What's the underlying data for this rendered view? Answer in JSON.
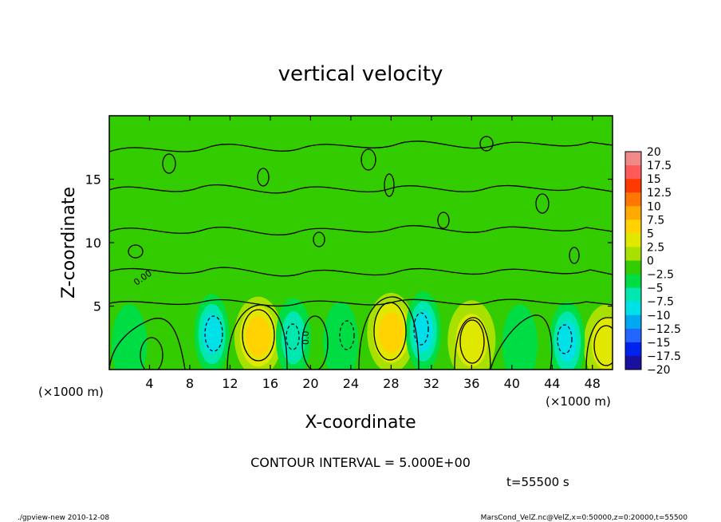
{
  "chart_data": {
    "type": "heatmap",
    "title": "vertical velocity",
    "xlabel": "X-coordinate",
    "ylabel": "Z-coordinate",
    "x_unit_label": "(×1000 m)",
    "y_unit_label": "(×1000 m)",
    "xlim": [
      0,
      50
    ],
    "ylim": [
      0,
      20
    ],
    "x_ticks": [
      4,
      8,
      12,
      16,
      20,
      24,
      28,
      32,
      36,
      40,
      44,
      48
    ],
    "y_ticks": [
      5,
      10,
      15
    ],
    "grid": false,
    "contour_interval_text": "CONTOUR INTERVAL = 5.000E+00",
    "contour_labels": [
      "0.00",
      "0.0"
    ],
    "time_label": "t=55500 s",
    "colorbar": {
      "placement": "right",
      "levels": [
        20,
        17.5,
        15,
        12.5,
        10,
        7.5,
        5,
        2.5,
        0,
        -2.5,
        -5,
        -7.5,
        -10,
        -12.5,
        -15,
        -17.5,
        -20
      ],
      "level_labels": [
        "20",
        "17.5",
        "15",
        "12.5",
        "10",
        "7.5",
        "5",
        "2.5",
        "0",
        "−2.5",
        "−5",
        "−7.5",
        "−10",
        "−12.5",
        "−15",
        "−17.5",
        "−20"
      ],
      "colors": [
        "#f08a8a",
        "#ff5a5a",
        "#ff3a00",
        "#ff7700",
        "#ffaa00",
        "#ffd200",
        "#e0e800",
        "#a8e000",
        "#33cc00",
        "#00dd44",
        "#00e8b0",
        "#00e0e8",
        "#00a8f0",
        "#2266ff",
        "#0022ee",
        "#1a10a0",
        "#6a10b0"
      ]
    },
    "features": [
      {
        "type": "updraft",
        "x": 14.8,
        "z": 2.6,
        "w_max": 7.5
      },
      {
        "type": "updraft",
        "x": 28.0,
        "z": 2.9,
        "w_max": 7.5
      },
      {
        "type": "updraft",
        "x": 36.0,
        "z": 2.3,
        "w_max": 5
      },
      {
        "type": "updraft",
        "x": 49.5,
        "z": 2.0,
        "w_max": 5
      },
      {
        "type": "downdraft",
        "x": 10.2,
        "z": 2.8,
        "w_min": -7.5
      },
      {
        "type": "downdraft",
        "x": 18.3,
        "z": 2.5,
        "w_min": -5
      },
      {
        "type": "downdraft",
        "x": 31.2,
        "z": 3.0,
        "w_min": -7.5
      },
      {
        "type": "downdraft",
        "x": 45.5,
        "z": 2.2,
        "w_min": -7.5
      },
      {
        "type": "downdraft",
        "x": 2.0,
        "z": 2.0,
        "w_min": -2.5
      },
      {
        "type": "downdraft",
        "x": 23.0,
        "z": 2.2,
        "w_min": -2.5
      },
      {
        "type": "downdraft",
        "x": 40.8,
        "z": 2.0,
        "w_min": -2.5
      }
    ]
  },
  "footer": {
    "left": "./gpview-new   2010-12-08",
    "right": "MarsCond_VelZ.nc@VelZ,x=0:50000,z=0:20000,t=55500"
  }
}
